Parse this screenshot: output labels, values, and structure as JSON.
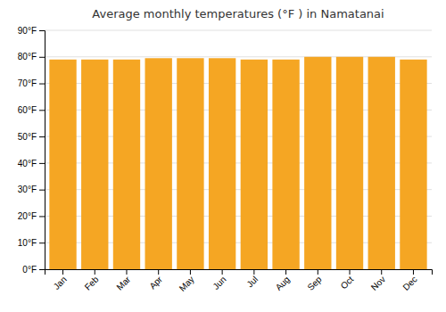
{
  "chart_data": {
    "type": "bar",
    "title": "Average monthly temperatures (°F ) in Namatanai",
    "categories": [
      "Jan",
      "Feb",
      "Mar",
      "Apr",
      "May",
      "Jun",
      "Jul",
      "Aug",
      "Sep",
      "Oct",
      "Nov",
      "Dec"
    ],
    "values": [
      79,
      79,
      79,
      79.5,
      79.5,
      79.5,
      79,
      79,
      80,
      80,
      80,
      79
    ],
    "color": "#F5A623",
    "ylim": [
      0,
      90
    ],
    "yticks": [
      {
        "value": 0,
        "label": "0°F"
      },
      {
        "value": 10,
        "label": "10°F"
      },
      {
        "value": 20,
        "label": "20°F"
      },
      {
        "value": 30,
        "label": "30°F"
      },
      {
        "value": 40,
        "label": "40°F"
      },
      {
        "value": 50,
        "label": "50°F"
      },
      {
        "value": 60,
        "label": "60°F"
      },
      {
        "value": 70,
        "label": "70°F"
      },
      {
        "value": 80,
        "label": "80°F"
      },
      {
        "value": 90,
        "label": "90°F"
      }
    ],
    "grid": true
  }
}
